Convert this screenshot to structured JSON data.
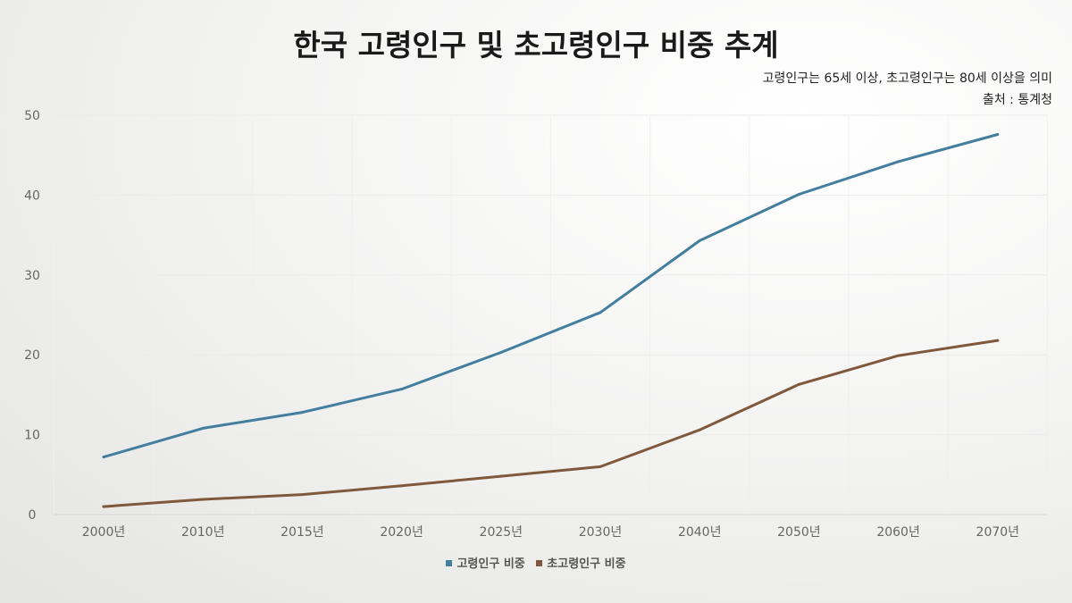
{
  "chart_data": {
    "type": "line",
    "title": "한국 고령인구 및 초고령인구 비중 추계",
    "subtitle": "고령인구는 65세 이상, 초고령인구는 80세 이상을 의미",
    "source": "출처 : 통계청",
    "categories": [
      "2000년",
      "2010년",
      "2015년",
      "2020년",
      "2025년",
      "2030년",
      "2040년",
      "2050년",
      "2060년",
      "2070년"
    ],
    "series": [
      {
        "name": "고령인구 비중",
        "color": "#437e9f",
        "values": [
          7.2,
          10.8,
          12.8,
          15.7,
          20.3,
          25.3,
          34.3,
          40.1,
          44.2,
          47.6
        ]
      },
      {
        "name": "초고령인구 비중",
        "color": "#80593d",
        "values": [
          1.0,
          1.9,
          2.5,
          3.6,
          4.8,
          6.0,
          10.6,
          16.3,
          19.9,
          21.8
        ]
      }
    ],
    "ylim": [
      0,
      50
    ],
    "yticks": [
      0,
      10,
      20,
      30,
      40,
      50
    ],
    "grid": true,
    "legend": "bottom-center"
  }
}
